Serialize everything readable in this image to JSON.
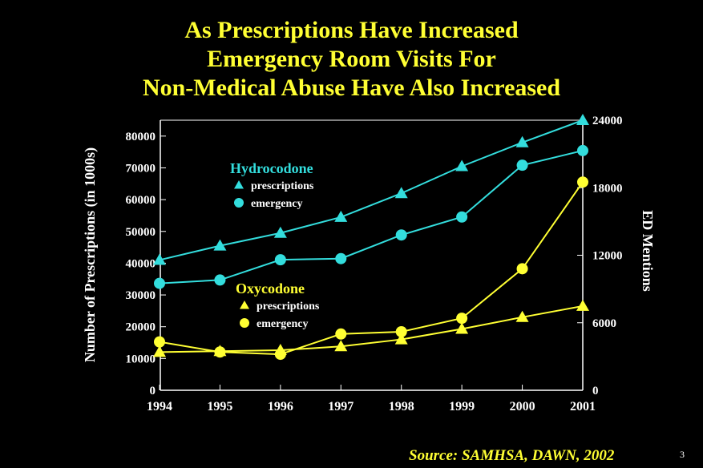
{
  "title_lines": [
    "As Prescriptions Have Increased",
    "Emergency Room Visits For",
    "Non-Medical Abuse Have Also Increased"
  ],
  "source": "Source: SAMHSA, DAWN, 2002",
  "page_number": "3",
  "colors": {
    "hydrocodone": "#33dddd",
    "oxycodone": "#ffff33",
    "text": "#ffffff",
    "title": "#ffff33"
  },
  "chart_data": {
    "type": "line",
    "x": [
      1994,
      1995,
      1996,
      1997,
      1998,
      1999,
      2000,
      2001
    ],
    "xlabels": [
      "1994",
      "1995",
      "1996",
      "1997",
      "1998",
      "1999",
      "2000",
      "2001"
    ],
    "ylabel_left": "Number of Prescriptions (in 1000s)",
    "ylabel_right": "ED Mentions",
    "ylim_left": [
      0,
      85000
    ],
    "ylim_right": [
      0,
      24000
    ],
    "yticks_left": [
      "0",
      "10000",
      "20000",
      "30000",
      "40000",
      "50000",
      "60000",
      "70000",
      "80000"
    ],
    "yticks_left_values": [
      0,
      10000,
      20000,
      30000,
      40000,
      50000,
      60000,
      70000,
      80000
    ],
    "yticks_right": [
      "0",
      "6000",
      "12000",
      "18000",
      "24000"
    ],
    "yticks_right_values": [
      0,
      6000,
      12000,
      18000,
      24000
    ],
    "legend_groups": [
      {
        "title": "Hydrocodone",
        "color_key": "hydrocodone",
        "items": [
          {
            "marker": "triangle",
            "label": "prescriptions"
          },
          {
            "marker": "circle",
            "label": "emergency"
          }
        ]
      },
      {
        "title": "Oxycodone",
        "color_key": "oxycodone",
        "items": [
          {
            "marker": "triangle",
            "label": "prescriptions"
          },
          {
            "marker": "circle",
            "label": "emergency"
          }
        ]
      }
    ],
    "series": [
      {
        "name": "Hydrocodone prescriptions",
        "color_key": "hydrocodone",
        "marker": "triangle",
        "axis": "left",
        "values": [
          41000,
          45500,
          49500,
          54500,
          62000,
          70500,
          78000,
          85000
        ]
      },
      {
        "name": "Hydrocodone emergency",
        "color_key": "hydrocodone",
        "marker": "circle",
        "axis": "right",
        "values": [
          9500,
          9800,
          11600,
          11700,
          13800,
          15400,
          20000,
          21300
        ]
      },
      {
        "name": "Oxycodone prescriptions",
        "color_key": "oxycodone",
        "marker": "triangle",
        "axis": "left",
        "values": [
          12000,
          12300,
          12600,
          13800,
          16000,
          19300,
          23000,
          26500
        ]
      },
      {
        "name": "Oxycodone emergency",
        "color_key": "oxycodone",
        "marker": "circle",
        "axis": "right",
        "values": [
          4300,
          3400,
          3200,
          5000,
          5200,
          6400,
          10800,
          18500
        ]
      }
    ]
  }
}
